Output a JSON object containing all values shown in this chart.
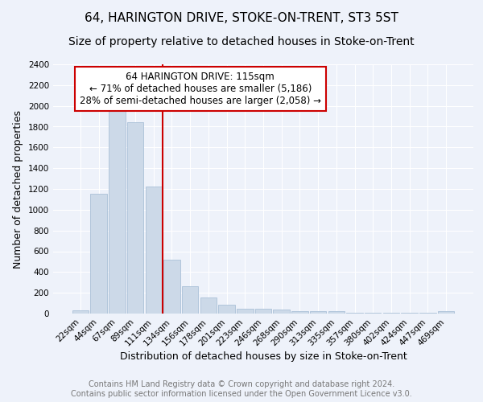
{
  "title": "64, HARINGTON DRIVE, STOKE-ON-TRENT, ST3 5ST",
  "subtitle": "Size of property relative to detached houses in Stoke-on-Trent",
  "xlabel": "Distribution of detached houses by size in Stoke-on-Trent",
  "ylabel": "Number of detached properties",
  "bar_labels": [
    "22sqm",
    "44sqm",
    "67sqm",
    "89sqm",
    "111sqm",
    "134sqm",
    "156sqm",
    "178sqm",
    "201sqm",
    "223sqm",
    "246sqm",
    "268sqm",
    "290sqm",
    "313sqm",
    "335sqm",
    "357sqm",
    "380sqm",
    "402sqm",
    "424sqm",
    "447sqm",
    "469sqm"
  ],
  "bar_values": [
    30,
    1150,
    1950,
    1840,
    1220,
    515,
    265,
    155,
    85,
    45,
    45,
    35,
    20,
    20,
    20,
    10,
    10,
    10,
    5,
    5,
    20
  ],
  "bar_color": "#ccd9e8",
  "bar_edgecolor": "#aac0d8",
  "vline_x": 4.5,
  "vline_color": "#cc0000",
  "annotation_title": "64 HARINGTON DRIVE: 115sqm",
  "annotation_line1": "← 71% of detached houses are smaller (5,186)",
  "annotation_line2": "28% of semi-detached houses are larger (2,058) →",
  "annotation_box_color": "white",
  "annotation_box_edgecolor": "#cc0000",
  "ylim": [
    0,
    2400
  ],
  "yticks": [
    0,
    200,
    400,
    600,
    800,
    1000,
    1200,
    1400,
    1600,
    1800,
    2000,
    2200,
    2400
  ],
  "footer_line1": "Contains HM Land Registry data © Crown copyright and database right 2024.",
  "footer_line2": "Contains public sector information licensed under the Open Government Licence v3.0.",
  "background_color": "#eef2fa",
  "grid_color": "white",
  "title_fontsize": 11,
  "subtitle_fontsize": 10,
  "axis_label_fontsize": 9,
  "tick_fontsize": 7.5,
  "footer_fontsize": 7,
  "annotation_fontsize": 8.5
}
